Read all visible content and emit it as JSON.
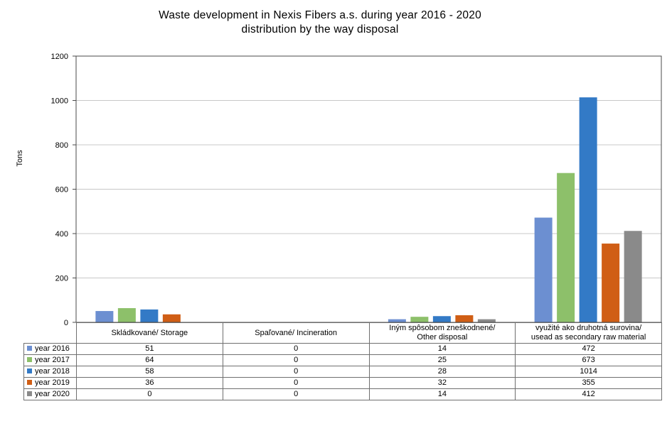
{
  "chart_data": {
    "type": "bar",
    "title": [
      "Waste development in Nexis Fibers a.s. during year 2016 - 2020",
      "distribution by the way disposal"
    ],
    "ylabel": "Tons",
    "ylim": [
      0,
      1200
    ],
    "yticks": [
      "0",
      "200",
      "400",
      "600",
      "800",
      "1000",
      "1200"
    ],
    "grid": true,
    "legend_placement": "data-table",
    "categories": [
      [
        "Skládkované/ Storage"
      ],
      [
        "Spaľované/ Incineration"
      ],
      [
        "Iným spôsobom zneškodnené/",
        "Other disposal"
      ],
      [
        "využité ako druhotná surovina/",
        "usead as secondary raw material"
      ]
    ],
    "series": [
      {
        "name": "year 2016",
        "color": "#6c8fd1",
        "values": [
          51,
          0,
          14,
          472
        ]
      },
      {
        "name": "year 2017",
        "color": "#8dc06a",
        "values": [
          64,
          0,
          25,
          673
        ]
      },
      {
        "name": "year 2018",
        "color": "#337ac6",
        "values": [
          58,
          0,
          28,
          1014
        ]
      },
      {
        "name": "year 2019",
        "color": "#d05e15",
        "values": [
          36,
          0,
          32,
          355
        ]
      },
      {
        "name": "year 2020",
        "color": "#8a8a8a",
        "values": [
          0,
          0,
          14,
          412
        ]
      }
    ]
  }
}
